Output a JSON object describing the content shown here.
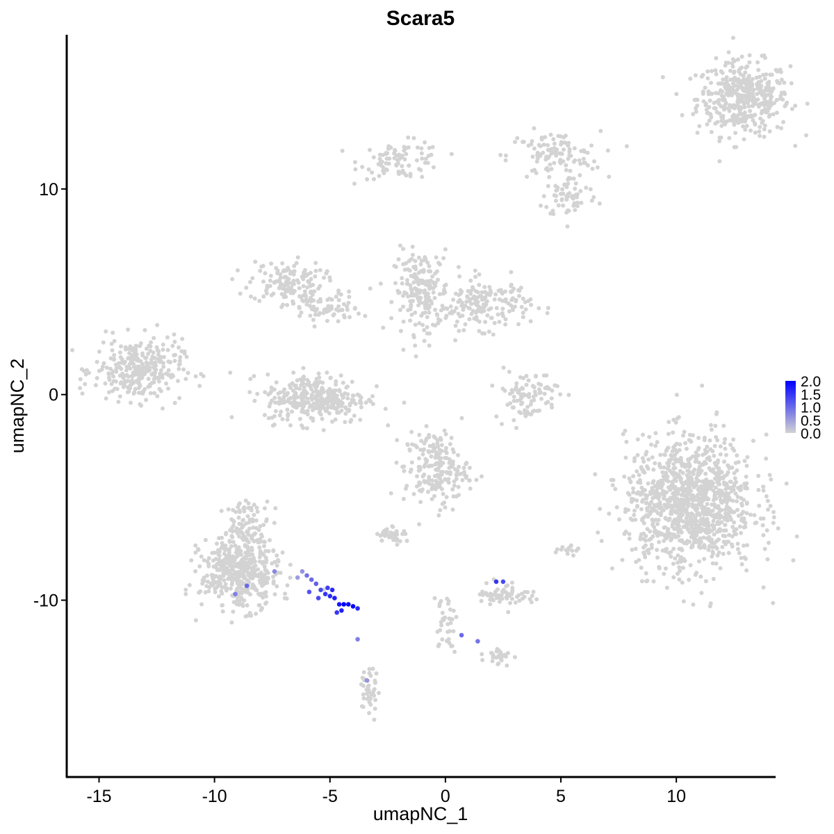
{
  "chart_data": {
    "type": "scatter",
    "title": "Scara5",
    "xlabel": "umapNC_1",
    "ylabel": "umapNC_2",
    "xlim": [
      -16.4,
      14.3
    ],
    "ylim": [
      -18.6,
      17.5
    ],
    "x_ticks": [
      -15,
      -10,
      -5,
      0,
      5,
      10
    ],
    "x_tick_labels": [
      "-15",
      "-10",
      "-5",
      "0",
      "5",
      "10"
    ],
    "y_ticks": [
      -10,
      0,
      10
    ],
    "y_tick_labels": [
      "-10",
      "0",
      "10"
    ],
    "grid": false,
    "legend": {
      "placement": "right",
      "type": "continuous color scale",
      "min": 0.0,
      "max": 2.0,
      "labels": [
        "2.0",
        "1.5",
        "1.0",
        "0.5",
        "0.0"
      ],
      "low_color": "#d3d3d3",
      "high_color": "#0000ff"
    },
    "background_cells_expression": 0.0,
    "cell_clusters": [
      {
        "cx": 12.9,
        "cy": 14.4,
        "sx": 1.0,
        "sy": 0.9,
        "n": 420
      },
      {
        "cx": -1.9,
        "cy": 11.4,
        "sx": 0.9,
        "sy": 0.45,
        "n": 90
      },
      {
        "cx": 4.7,
        "cy": 11.6,
        "sx": 1.0,
        "sy": 0.6,
        "n": 110
      },
      {
        "cx": 5.4,
        "cy": 9.6,
        "sx": 0.6,
        "sy": 0.5,
        "n": 60
      },
      {
        "cx": -6.9,
        "cy": 5.5,
        "sx": 0.8,
        "sy": 0.5,
        "n": 130
      },
      {
        "cx": -5.3,
        "cy": 4.2,
        "sx": 0.8,
        "sy": 0.4,
        "n": 80
      },
      {
        "cx": -1.0,
        "cy": 5.0,
        "sx": 0.6,
        "sy": 1.0,
        "n": 200
      },
      {
        "cx": 1.7,
        "cy": 4.4,
        "sx": 1.0,
        "sy": 0.6,
        "n": 170
      },
      {
        "cx": -13.3,
        "cy": 1.2,
        "sx": 0.95,
        "sy": 0.75,
        "n": 300
      },
      {
        "cx": -5.6,
        "cy": -0.2,
        "sx": 1.1,
        "sy": 0.6,
        "n": 320
      },
      {
        "cx": 3.5,
        "cy": 0.0,
        "sx": 0.7,
        "sy": 0.6,
        "n": 90
      },
      {
        "cx": -0.4,
        "cy": -3.6,
        "sx": 0.7,
        "sy": 0.9,
        "n": 200
      },
      {
        "cx": 10.6,
        "cy": -5.3,
        "sx": 1.4,
        "sy": 1.6,
        "n": 1100
      },
      {
        "cx": -8.9,
        "cy": -8.7,
        "sx": 0.85,
        "sy": 0.85,
        "n": 420
      },
      {
        "cx": -8.6,
        "cy": -6.5,
        "sx": 0.5,
        "sy": 0.7,
        "n": 100
      },
      {
        "cx": -2.3,
        "cy": -6.8,
        "sx": 0.3,
        "sy": 0.2,
        "n": 40
      },
      {
        "cx": 2.6,
        "cy": -9.7,
        "sx": 0.6,
        "sy": 0.3,
        "n": 60
      },
      {
        "cx": -3.3,
        "cy": -14.5,
        "sx": 0.2,
        "sy": 0.6,
        "n": 40
      },
      {
        "cx": 2.3,
        "cy": -12.7,
        "sx": 0.3,
        "sy": 0.25,
        "n": 25
      },
      {
        "cx": 0.0,
        "cy": -11.0,
        "sx": 0.25,
        "sy": 0.7,
        "n": 35
      },
      {
        "cx": 5.3,
        "cy": -7.5,
        "sx": 0.25,
        "sy": 0.15,
        "n": 15
      }
    ],
    "expressing_cells": [
      {
        "x": -4.0,
        "y": -10.3,
        "v": 2.0
      },
      {
        "x": -4.2,
        "y": -10.2,
        "v": 1.9
      },
      {
        "x": -4.4,
        "y": -10.2,
        "v": 2.0
      },
      {
        "x": -4.6,
        "y": -10.2,
        "v": 1.8
      },
      {
        "x": -4.5,
        "y": -10.5,
        "v": 1.7
      },
      {
        "x": -4.8,
        "y": -9.9,
        "v": 1.7
      },
      {
        "x": -5.0,
        "y": -9.8,
        "v": 1.6
      },
      {
        "x": -5.2,
        "y": -9.7,
        "v": 1.5
      },
      {
        "x": -4.9,
        "y": -9.5,
        "v": 1.6
      },
      {
        "x": -5.1,
        "y": -9.4,
        "v": 1.4
      },
      {
        "x": -5.4,
        "y": -9.5,
        "v": 1.3
      },
      {
        "x": -5.6,
        "y": -9.2,
        "v": 1.1
      },
      {
        "x": -5.8,
        "y": -9.0,
        "v": 1.0
      },
      {
        "x": -6.0,
        "y": -8.8,
        "v": 0.9
      },
      {
        "x": -6.2,
        "y": -8.6,
        "v": 0.6
      },
      {
        "x": -5.9,
        "y": -9.6,
        "v": 1.2
      },
      {
        "x": -5.5,
        "y": -9.9,
        "v": 1.3
      },
      {
        "x": -4.7,
        "y": -10.6,
        "v": 1.5
      },
      {
        "x": -3.8,
        "y": -10.4,
        "v": 1.6
      },
      {
        "x": -6.4,
        "y": -8.9,
        "v": 0.5
      },
      {
        "x": -8.6,
        "y": -9.3,
        "v": 1.0
      },
      {
        "x": -9.1,
        "y": -9.7,
        "v": 0.8
      },
      {
        "x": -7.4,
        "y": -8.6,
        "v": 0.7
      },
      {
        "x": 2.2,
        "y": -9.1,
        "v": 1.5
      },
      {
        "x": 2.5,
        "y": -9.1,
        "v": 1.3
      },
      {
        "x": 0.7,
        "y": -11.7,
        "v": 1.0
      },
      {
        "x": 1.4,
        "y": -12.0,
        "v": 0.9
      },
      {
        "x": -3.8,
        "y": -11.9,
        "v": 0.8
      },
      {
        "x": -3.4,
        "y": -13.9,
        "v": 0.6
      }
    ]
  }
}
